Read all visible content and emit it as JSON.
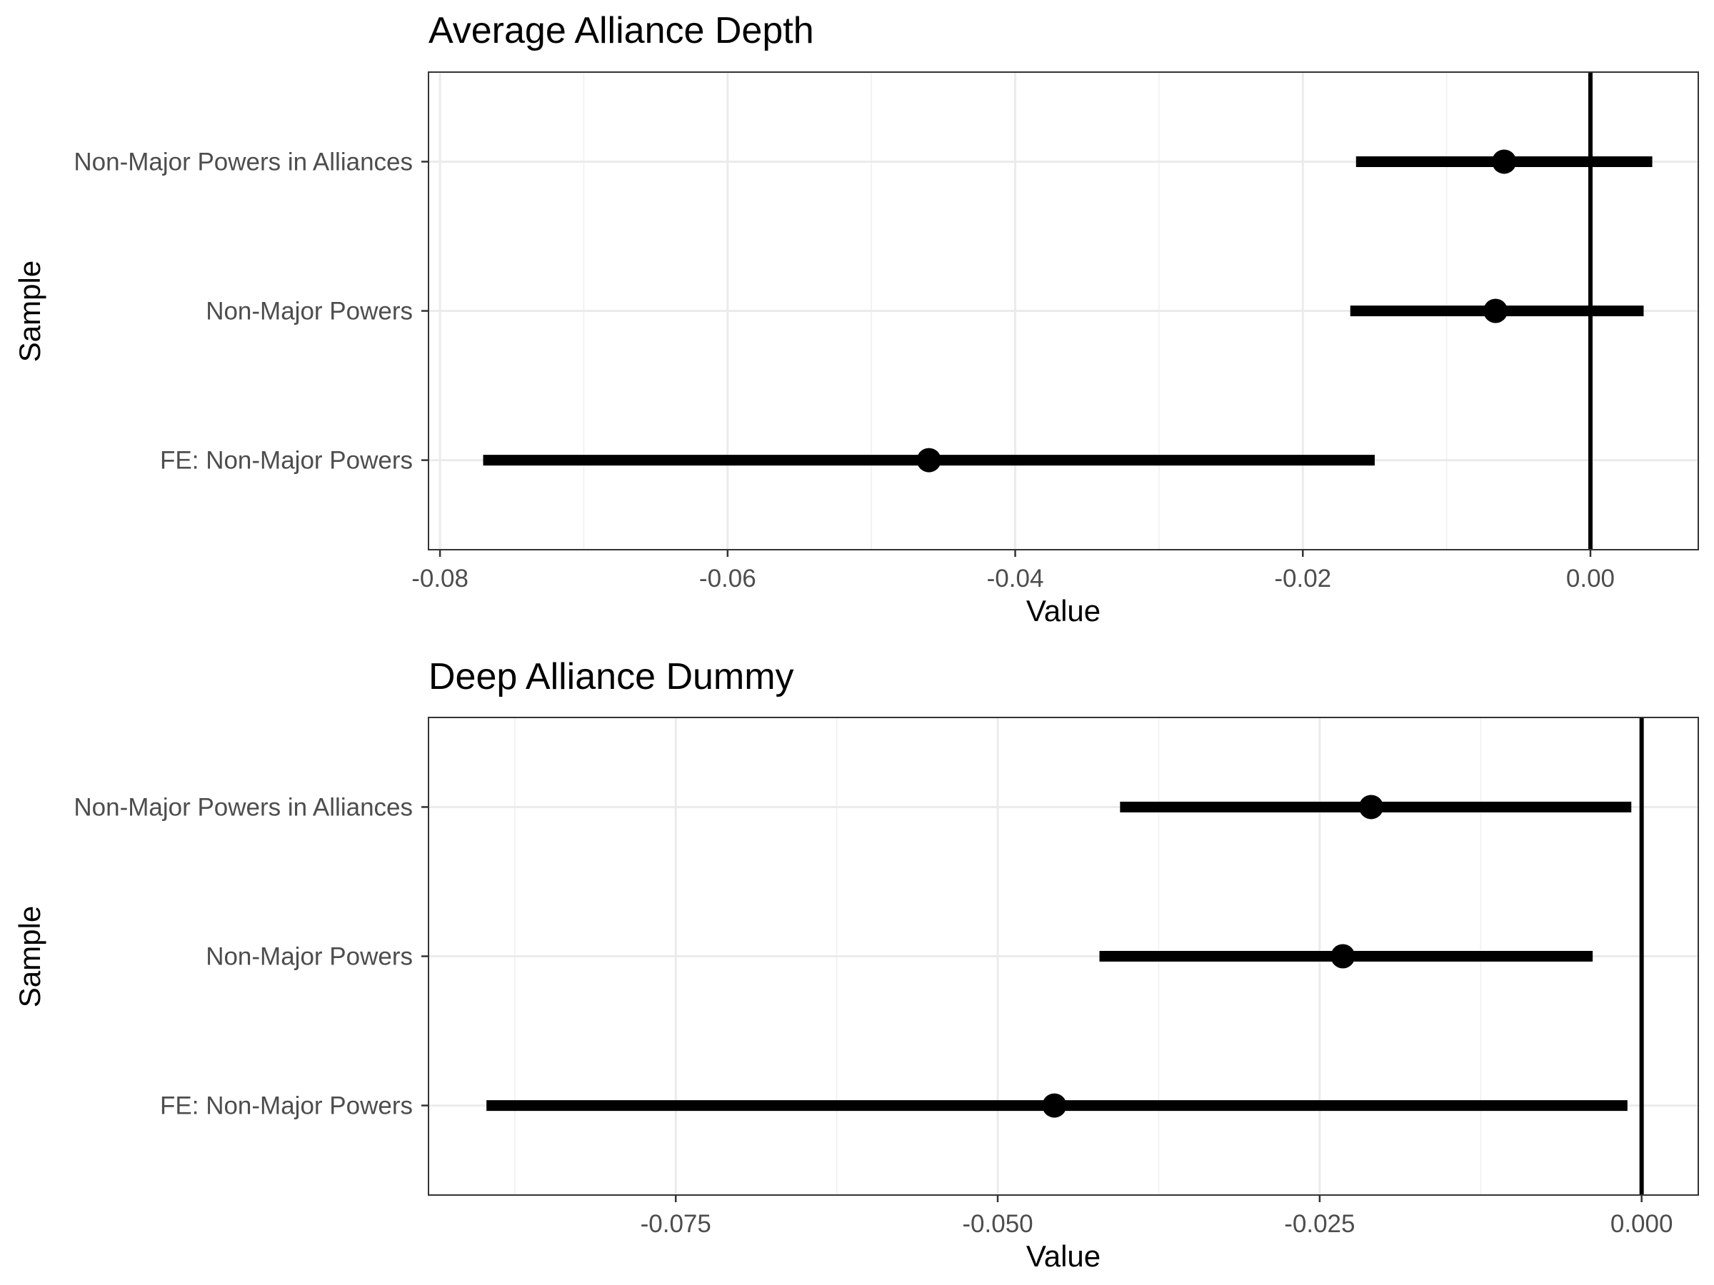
{
  "chart_data": [
    {
      "type": "scatter",
      "style": "coefficient-plot",
      "title": "Average Alliance Depth",
      "xlabel": "Value",
      "ylabel": "Sample",
      "categories": [
        "FE: Non-Major Powers",
        "Non-Major Powers",
        "Non-Major Powers in Alliances"
      ],
      "points": [
        {
          "category": "Non-Major Powers in Alliances",
          "estimate": -0.006,
          "lower": -0.0163,
          "upper": 0.0043
        },
        {
          "category": "Non-Major Powers",
          "estimate": -0.0066,
          "lower": -0.0167,
          "upper": 0.0037
        },
        {
          "category": "FE: Non-Major Powers",
          "estimate": -0.046,
          "lower": -0.077,
          "upper": -0.015
        }
      ],
      "reference_line": 0,
      "xlim": [
        -0.0808,
        0.0075
      ],
      "xticks": [
        -0.08,
        -0.06,
        -0.04,
        -0.02,
        0.0
      ],
      "xtick_labels": [
        "-0.08",
        "-0.06",
        "-0.04",
        "-0.02",
        "0.00"
      ],
      "grid": true
    },
    {
      "type": "scatter",
      "style": "coefficient-plot",
      "title": "Deep Alliance Dummy",
      "xlabel": "Value",
      "ylabel": "Sample",
      "categories": [
        "FE: Non-Major Powers",
        "Non-Major Powers",
        "Non-Major Powers in Alliances"
      ],
      "points": [
        {
          "category": "Non-Major Powers in Alliances",
          "estimate": -0.021,
          "lower": -0.0405,
          "upper": -0.0008
        },
        {
          "category": "Non-Major Powers",
          "estimate": -0.0232,
          "lower": -0.0421,
          "upper": -0.0038
        },
        {
          "category": "FE: Non-Major Powers",
          "estimate": -0.0456,
          "lower": -0.0897,
          "upper": -0.0011
        }
      ],
      "reference_line": 0,
      "xlim": [
        -0.0942,
        0.0044
      ],
      "xticks": [
        -0.075,
        -0.05,
        -0.025,
        0.0
      ],
      "xtick_labels": [
        "-0.075",
        "-0.050",
        "-0.025",
        "0.000"
      ],
      "grid": true
    }
  ]
}
